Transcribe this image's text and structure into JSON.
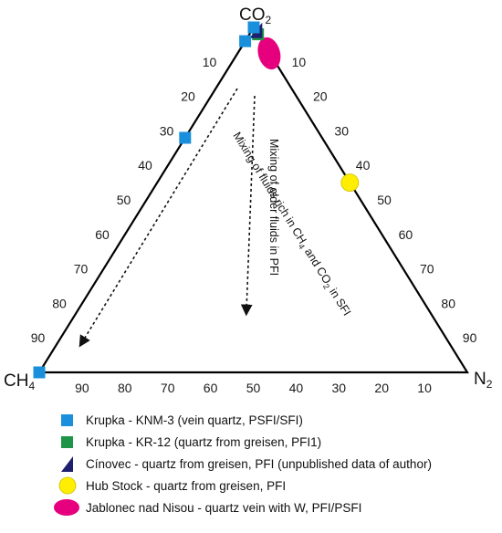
{
  "chart_data": {
    "type": "scatter",
    "subtype": "ternary",
    "title": "",
    "apices": {
      "top": {
        "main": "CO",
        "sub": "2"
      },
      "left": {
        "main": "CH",
        "sub": "4"
      },
      "right": {
        "main": "N",
        "sub": "2"
      }
    },
    "tick_labels": [
      "10",
      "20",
      "30",
      "40",
      "50",
      "60",
      "70",
      "80",
      "90"
    ],
    "bottom_tick_labels": [
      "90",
      "80",
      "70",
      "60",
      "50",
      "40",
      "30",
      "20",
      "10"
    ],
    "series": [
      {
        "name": "Krupka - KNM-3 (vein quartz, PSFI/SFI)",
        "marker": "square",
        "color": "#1a8fdc",
        "points": [
          {
            "co2": 100,
            "ch4": 0,
            "n2": 0
          },
          {
            "co2": 68,
            "ch4": 32,
            "n2": 0
          },
          {
            "co2": 96,
            "ch4": 4,
            "n2": 0
          },
          {
            "co2": 0,
            "ch4": 100,
            "n2": 0
          }
        ]
      },
      {
        "name": "Krupka - KR-12 (quartz from greisen, PFI1)",
        "marker": "square",
        "color": "#1e9447",
        "points": [
          {
            "co2": 98,
            "ch4": 0,
            "n2": 2
          }
        ]
      },
      {
        "name": "Cínovec - quartz from greisen, PFI (unpublished data of author)",
        "marker": "triangle",
        "color": "#1d1f6e",
        "points": [
          {
            "co2": 99,
            "ch4": 0,
            "n2": 1
          }
        ]
      },
      {
        "name": "Hub Stock - quartz from greisen, PFI",
        "marker": "circle",
        "color": "#ffee00",
        "points": [
          {
            "co2": 55,
            "ch4": 0,
            "n2": 45
          }
        ]
      },
      {
        "name": "Jablonec nad Nisou - quartz vein with W, PFI/PSFI",
        "marker": "blob",
        "color": "#e6007e",
        "points": [
          {
            "co2": 93,
            "ch4": 0,
            "n2": 7
          }
        ]
      }
    ],
    "annotations": [
      {
        "id": "sfi",
        "text": "Mixing of fluids rich in CH4 and CO2 in SFI",
        "parts": [
          "Mixing of fluids rich in CH",
          "4",
          " and CO",
          "2",
          " in SFI"
        ]
      },
      {
        "id": "pfi",
        "text": "Mixing of older fluids in PFI"
      }
    ],
    "grid": false,
    "legend_position": "bottom"
  }
}
